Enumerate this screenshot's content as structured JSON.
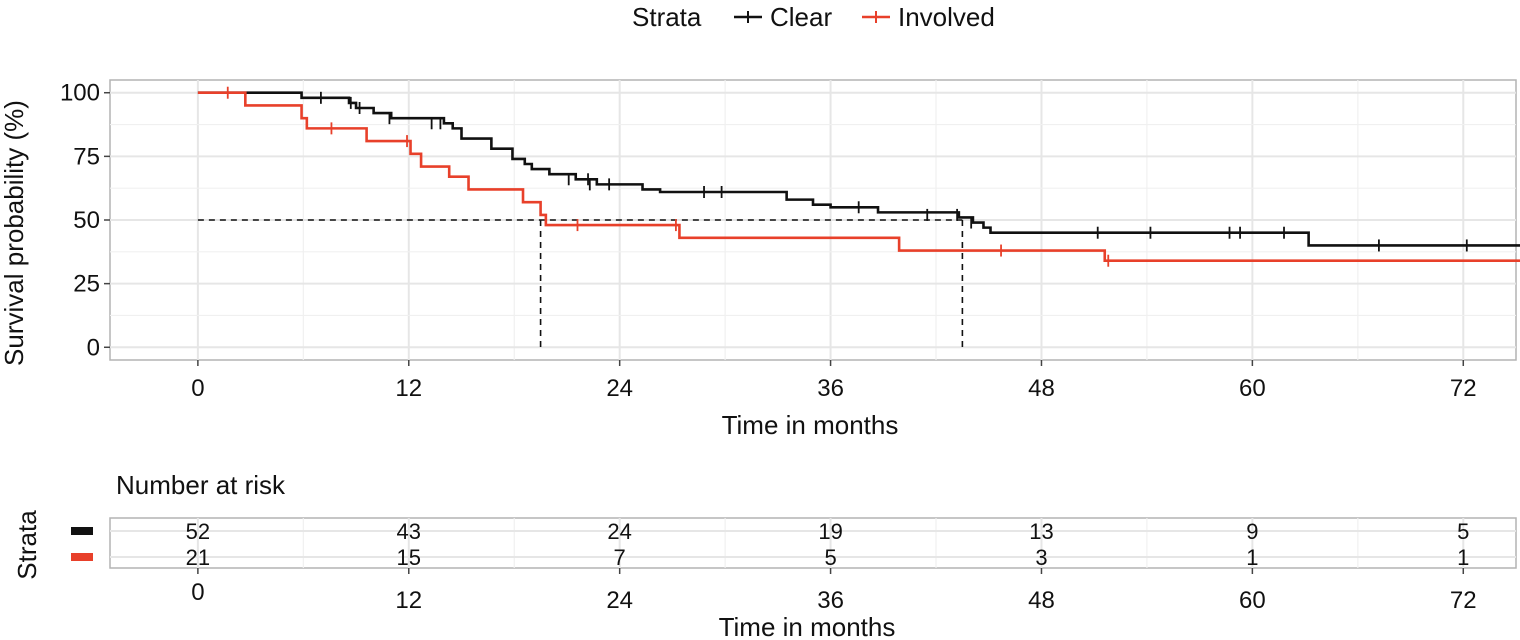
{
  "chart_data": {
    "type": "line",
    "subtype": "kaplan-meier",
    "legend": {
      "title": "Strata",
      "placement": "top",
      "entries": [
        {
          "name": "Clear",
          "color": "#111111"
        },
        {
          "name": "Involved",
          "color": "#e8402a"
        }
      ]
    },
    "xlabel": "Time in months",
    "ylabel": "Survival probability (%)",
    "xlim": [
      -5,
      75
    ],
    "ylim": [
      -5,
      105
    ],
    "xticks": [
      "0",
      "12",
      "24",
      "36",
      "48",
      "60",
      "72"
    ],
    "yticks": [
      "0",
      "25",
      "50",
      "75",
      "100"
    ],
    "grid": true,
    "median_reference": {
      "y": 50,
      "x_values": [
        19.5,
        43.5
      ]
    },
    "series": [
      {
        "name": "Clear",
        "color": "#111111",
        "steps": [
          [
            0,
            100
          ],
          [
            5.9,
            98
          ],
          [
            8.6,
            96
          ],
          [
            9,
            94
          ],
          [
            10,
            92
          ],
          [
            11,
            90
          ],
          [
            14,
            88
          ],
          [
            14.5,
            86
          ],
          [
            15,
            82
          ],
          [
            16.7,
            78
          ],
          [
            17.9,
            74
          ],
          [
            18.6,
            72
          ],
          [
            19,
            70
          ],
          [
            20,
            68
          ],
          [
            21.5,
            66
          ],
          [
            22.7,
            64
          ],
          [
            25.3,
            62
          ],
          [
            26.3,
            61
          ],
          [
            33.5,
            58
          ],
          [
            35,
            56
          ],
          [
            36,
            55
          ],
          [
            38.7,
            53
          ],
          [
            43.3,
            51
          ],
          [
            44.1,
            49
          ],
          [
            44.7,
            47
          ],
          [
            45.1,
            45
          ],
          [
            63.2,
            40
          ],
          [
            76,
            40
          ]
        ],
        "censored": [
          [
            7,
            98
          ],
          [
            8.7,
            96
          ],
          [
            9.2,
            94
          ],
          [
            10.9,
            90
          ],
          [
            13.3,
            88
          ],
          [
            13.8,
            88
          ],
          [
            21.1,
            66
          ],
          [
            22.2,
            66
          ],
          [
            22.3,
            64
          ],
          [
            23.4,
            64
          ],
          [
            28.8,
            61
          ],
          [
            29.8,
            61
          ],
          [
            37.6,
            55
          ],
          [
            41.5,
            52
          ],
          [
            43.2,
            52
          ],
          [
            44,
            49
          ],
          [
            51.2,
            45
          ],
          [
            54.2,
            45
          ],
          [
            58.7,
            45
          ],
          [
            59.3,
            45
          ],
          [
            61.8,
            45
          ],
          [
            67.2,
            40
          ],
          [
            72.2,
            40
          ]
        ]
      },
      {
        "name": "Involved",
        "color": "#e8402a",
        "steps": [
          [
            0,
            100
          ],
          [
            2.7,
            95
          ],
          [
            5.9,
            90
          ],
          [
            6.2,
            86
          ],
          [
            9.6,
            81
          ],
          [
            12.1,
            76
          ],
          [
            12.7,
            71
          ],
          [
            14.3,
            67
          ],
          [
            15.4,
            62
          ],
          [
            18.5,
            57
          ],
          [
            19.5,
            52
          ],
          [
            19.8,
            48
          ],
          [
            27.4,
            43
          ],
          [
            39.9,
            38
          ],
          [
            51.6,
            34
          ],
          [
            76,
            34
          ]
        ],
        "censored": [
          [
            1.7,
            100
          ],
          [
            7.6,
            86
          ],
          [
            11.9,
            81
          ],
          [
            21.6,
            48
          ],
          [
            27.2,
            48
          ],
          [
            45.7,
            38
          ],
          [
            51.8,
            34
          ]
        ]
      }
    ],
    "risk_table": {
      "title": "Number at risk",
      "strata_label": "Strata",
      "times": [
        0,
        12,
        24,
        36,
        48,
        60,
        72
      ],
      "rows": [
        {
          "color": "#111111",
          "counts": [
            "52",
            "43",
            "24",
            "19",
            "13",
            "9",
            "5"
          ]
        },
        {
          "color": "#e8402a",
          "counts": [
            "21",
            "15",
            "7",
            "5",
            "3",
            "1",
            "1"
          ]
        }
      ],
      "xticks": [
        "0",
        "12",
        "24",
        "36",
        "48",
        "60",
        "72"
      ],
      "xlabel": "Time in months"
    }
  }
}
